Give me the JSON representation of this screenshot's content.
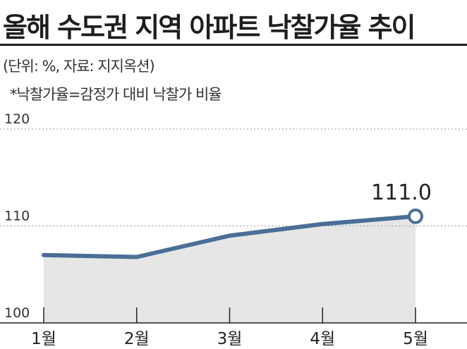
{
  "title": "올해 수도권 지역 아파트 낙찰가율 추이",
  "unit_note": "(단위: %, 자료: 지지옥션)",
  "footnote": "*낙찰가율=감정가 대비 낙찰가 비율",
  "colors": {
    "line": "#4a6f96",
    "area": "#e6e6e6",
    "grid": "#999999",
    "marker_fill": "#ffffff"
  },
  "chart_data": {
    "type": "area",
    "title": "올해 수도권 지역 아파트 낙찰가율 추이",
    "xlabel": "",
    "ylabel": "",
    "categories": [
      "1월",
      "2월",
      "3월",
      "4월",
      "5월"
    ],
    "series": [
      {
        "values": [
          107.0,
          106.8,
          109.0,
          110.2,
          111.0
        ]
      }
    ],
    "y_ticks": [
      "100",
      "110",
      "120"
    ],
    "ylim": [
      100,
      120
    ],
    "grid": true,
    "data_labels": [
      {
        "category": "5월",
        "text": "111.0"
      }
    ],
    "highlighted_point": "5월"
  }
}
